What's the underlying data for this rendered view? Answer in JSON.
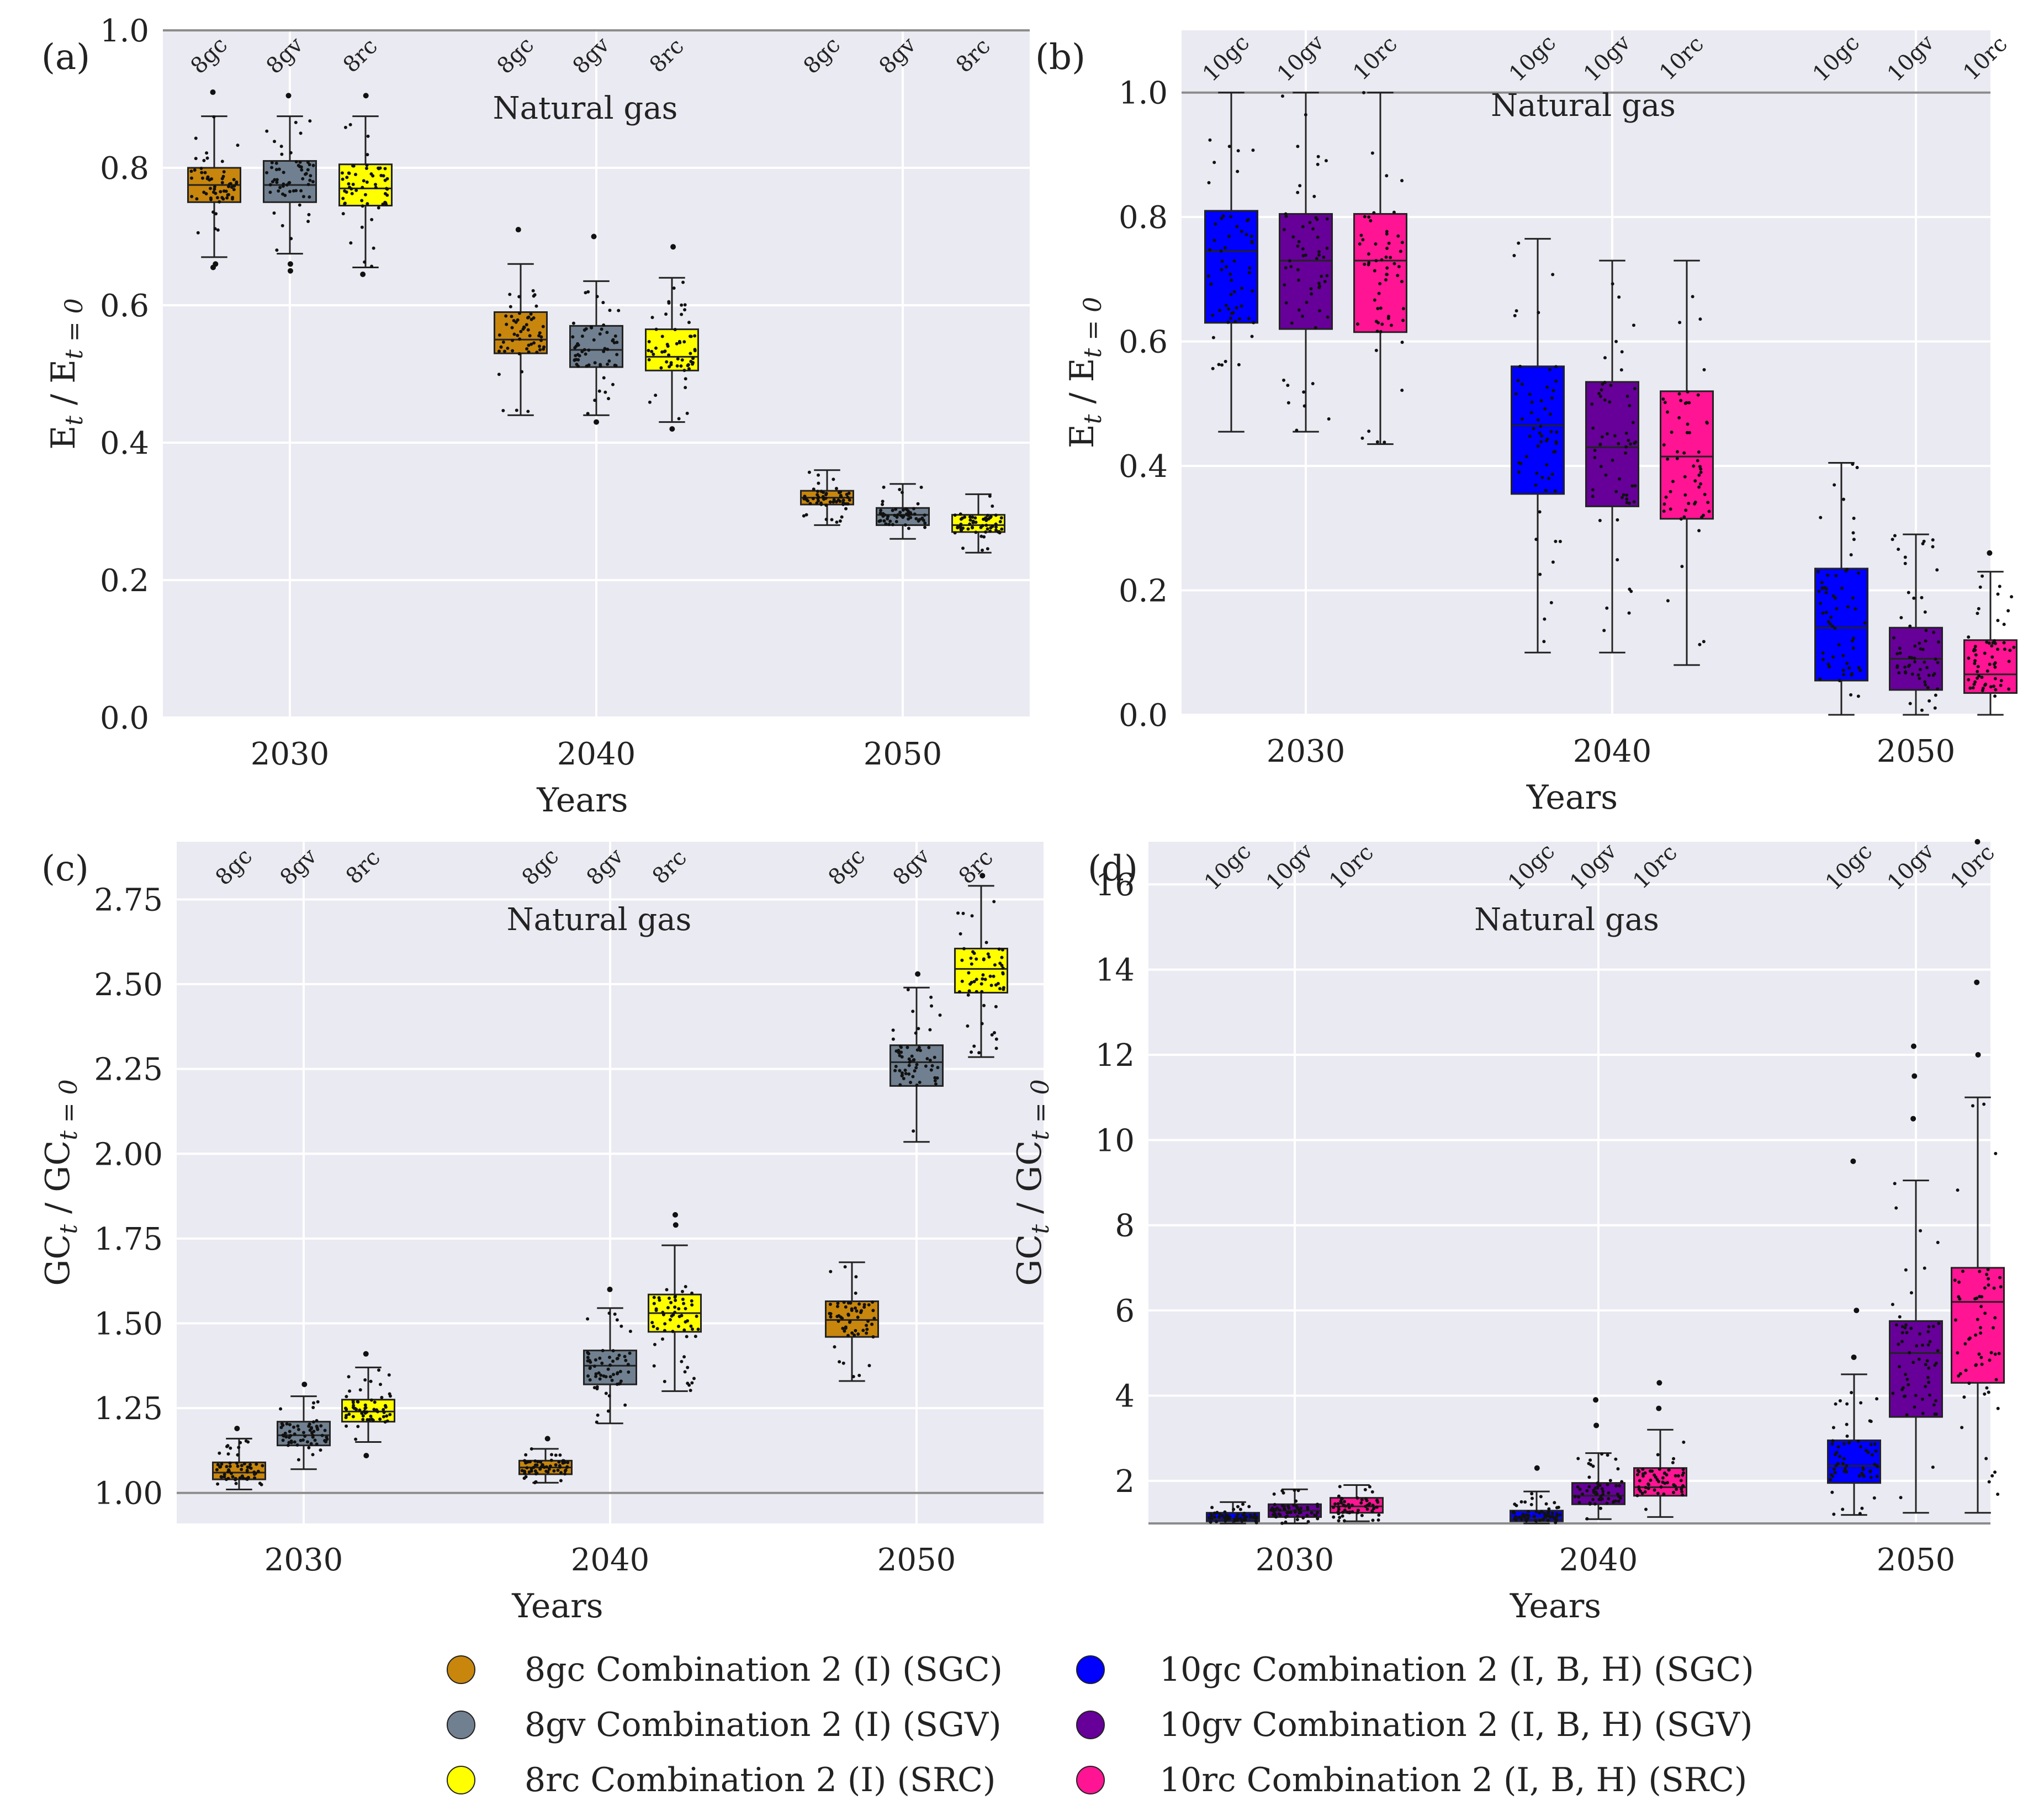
{
  "chart_data": [
    {
      "id": "a",
      "panel_label": "(a)",
      "type": "box",
      "annotation": "Natural gas",
      "xlabel": "Years",
      "ylabel_main": "E",
      "ylabel_sub": "t",
      "ylabel_sep": " / ",
      "ylabel_main2": "E",
      "ylabel_sub2": "t = 0",
      "categories": [
        "2030",
        "2040",
        "2050"
      ],
      "ylim": [
        0,
        1.0
      ],
      "yticks": [
        0.0,
        0.2,
        0.4,
        0.6,
        0.8,
        1.0
      ],
      "ytick_labels": [
        "0.0",
        "0.2",
        "0.4",
        "0.6",
        "0.8",
        "1.0"
      ],
      "reference_line": 1.0,
      "series": [
        {
          "name": "8gc",
          "color": "#c8860d",
          "boxes": [
            {
              "whislo": 0.67,
              "q1": 0.75,
              "med": 0.775,
              "q3": 0.8,
              "whishi": 0.875,
              "fliers": [
                0.91,
                0.66,
                0.655
              ]
            },
            {
              "whislo": 0.44,
              "q1": 0.53,
              "med": 0.55,
              "q3": 0.59,
              "whishi": 0.66,
              "fliers": [
                0.71
              ]
            },
            {
              "whislo": 0.28,
              "q1": 0.31,
              "med": 0.32,
              "q3": 0.33,
              "whishi": 0.36,
              "fliers": []
            }
          ]
        },
        {
          "name": "8gv",
          "color": "#708090",
          "boxes": [
            {
              "whislo": 0.675,
              "q1": 0.75,
              "med": 0.775,
              "q3": 0.81,
              "whishi": 0.875,
              "fliers": [
                0.905,
                0.66,
                0.65
              ]
            },
            {
              "whislo": 0.44,
              "q1": 0.51,
              "med": 0.535,
              "q3": 0.57,
              "whishi": 0.635,
              "fliers": [
                0.7,
                0.43
              ]
            },
            {
              "whislo": 0.26,
              "q1": 0.28,
              "med": 0.295,
              "q3": 0.305,
              "whishi": 0.34,
              "fliers": []
            }
          ]
        },
        {
          "name": "8rc",
          "color": "#ffff00",
          "boxes": [
            {
              "whislo": 0.655,
              "q1": 0.745,
              "med": 0.77,
              "q3": 0.805,
              "whishi": 0.875,
              "fliers": [
                0.905,
                0.645
              ]
            },
            {
              "whislo": 0.43,
              "q1": 0.505,
              "med": 0.525,
              "q3": 0.565,
              "whishi": 0.64,
              "fliers": [
                0.685,
                0.42
              ]
            },
            {
              "whislo": 0.24,
              "q1": 0.27,
              "med": 0.28,
              "q3": 0.295,
              "whishi": 0.325,
              "fliers": []
            }
          ]
        }
      ]
    },
    {
      "id": "b",
      "panel_label": "(b)",
      "type": "box",
      "annotation": "Natural gas",
      "xlabel": "Years",
      "ylabel_main": "E",
      "ylabel_sub": "t",
      "ylabel_sep": " / ",
      "ylabel_main2": "E",
      "ylabel_sub2": "t = 0",
      "categories": [
        "2030",
        "2040",
        "2050"
      ],
      "ylim": [
        0,
        1.1
      ],
      "yticks": [
        0.0,
        0.2,
        0.4,
        0.6,
        0.8,
        1.0
      ],
      "ytick_labels": [
        "0.0",
        "0.2",
        "0.4",
        "0.6",
        "0.8",
        "1.0"
      ],
      "reference_line": 1.0,
      "series": [
        {
          "name": "10gc",
          "color": "#0000ff",
          "boxes": [
            {
              "whislo": 0.455,
              "q1": 0.63,
              "med": 0.745,
              "q3": 0.81,
              "whishi": 1.0,
              "fliers": []
            },
            {
              "whislo": 0.1,
              "q1": 0.355,
              "med": 0.465,
              "q3": 0.56,
              "whishi": 0.765,
              "fliers": []
            },
            {
              "whislo": 0.0,
              "q1": 0.055,
              "med": 0.14,
              "q3": 0.235,
              "whishi": 0.405,
              "fliers": []
            }
          ]
        },
        {
          "name": "10gv",
          "color": "#660099",
          "boxes": [
            {
              "whislo": 0.455,
              "q1": 0.62,
              "med": 0.73,
              "q3": 0.805,
              "whishi": 1.0,
              "fliers": []
            },
            {
              "whislo": 0.1,
              "q1": 0.335,
              "med": 0.43,
              "q3": 0.535,
              "whishi": 0.73,
              "fliers": []
            },
            {
              "whislo": 0.0,
              "q1": 0.04,
              "med": 0.09,
              "q3": 0.14,
              "whishi": 0.29,
              "fliers": []
            }
          ]
        },
        {
          "name": "10rc",
          "color": "#ff1493",
          "boxes": [
            {
              "whislo": 0.435,
              "q1": 0.615,
              "med": 0.73,
              "q3": 0.805,
              "whishi": 1.0,
              "fliers": []
            },
            {
              "whislo": 0.08,
              "q1": 0.315,
              "med": 0.415,
              "q3": 0.52,
              "whishi": 0.73,
              "fliers": []
            },
            {
              "whislo": 0.0,
              "q1": 0.035,
              "med": 0.065,
              "q3": 0.12,
              "whishi": 0.23,
              "fliers": [
                0.26
              ]
            }
          ]
        }
      ]
    },
    {
      "id": "c",
      "panel_label": "(c)",
      "type": "box",
      "annotation": "Natural gas",
      "xlabel": "Years",
      "ylabel_main": "GC",
      "ylabel_sub": "t",
      "ylabel_sep": " / ",
      "ylabel_main2": "GC",
      "ylabel_sub2": "t = 0",
      "categories": [
        "2030",
        "2040",
        "2050"
      ],
      "ylim": [
        0.91,
        2.92
      ],
      "yticks": [
        1.0,
        1.25,
        1.5,
        1.75,
        2.0,
        2.25,
        2.5,
        2.75
      ],
      "ytick_labels": [
        "1.00",
        "1.25",
        "1.50",
        "1.75",
        "2.00",
        "2.25",
        "2.50",
        "2.75"
      ],
      "reference_line": 1.0,
      "series": [
        {
          "name": "8gc",
          "color": "#c8860d",
          "boxes": [
            {
              "whislo": 1.01,
              "q1": 1.04,
              "med": 1.06,
              "q3": 1.09,
              "whishi": 1.16,
              "fliers": [
                1.19
              ]
            },
            {
              "whislo": 1.03,
              "q1": 1.055,
              "med": 1.075,
              "q3": 1.095,
              "whishi": 1.13,
              "fliers": [
                1.16
              ]
            },
            {
              "whislo": 1.33,
              "q1": 1.46,
              "med": 1.51,
              "q3": 1.565,
              "whishi": 1.68,
              "fliers": []
            }
          ]
        },
        {
          "name": "8gv",
          "color": "#708090",
          "boxes": [
            {
              "whislo": 1.07,
              "q1": 1.14,
              "med": 1.17,
              "q3": 1.21,
              "whishi": 1.285,
              "fliers": [
                1.32
              ]
            },
            {
              "whislo": 1.205,
              "q1": 1.32,
              "med": 1.375,
              "q3": 1.42,
              "whishi": 1.545,
              "fliers": [
                1.6
              ]
            },
            {
              "whislo": 2.035,
              "q1": 2.2,
              "med": 2.27,
              "q3": 2.32,
              "whishi": 2.49,
              "fliers": [
                2.53
              ]
            }
          ]
        },
        {
          "name": "8rc",
          "color": "#ffff00",
          "boxes": [
            {
              "whislo": 1.15,
              "q1": 1.21,
              "med": 1.24,
              "q3": 1.275,
              "whishi": 1.37,
              "fliers": [
                1.41,
                1.11
              ]
            },
            {
              "whislo": 1.3,
              "q1": 1.475,
              "med": 1.53,
              "q3": 1.585,
              "whishi": 1.73,
              "fliers": [
                1.79,
                1.82
              ]
            },
            {
              "whislo": 2.285,
              "q1": 2.475,
              "med": 2.545,
              "q3": 2.605,
              "whishi": 2.79,
              "fliers": [
                2.82
              ]
            }
          ]
        }
      ]
    },
    {
      "id": "d",
      "panel_label": "(d)",
      "type": "box",
      "annotation": "Natural gas",
      "xlabel": "Years",
      "ylabel_main": "GC",
      "ylabel_sub": "t",
      "ylabel_sep": " / ",
      "ylabel_main2": "GC",
      "ylabel_sub2": "t = 0",
      "categories": [
        "2030",
        "2040",
        "2050"
      ],
      "ylim": [
        1.0,
        17.0
      ],
      "yticks": [
        2,
        4,
        6,
        8,
        10,
        12,
        14,
        16
      ],
      "ytick_labels": [
        "2",
        "4",
        "6",
        "8",
        "10",
        "12",
        "14",
        "16"
      ],
      "reference_line": 1.0,
      "series": [
        {
          "name": "10gc",
          "color": "#0000ff",
          "boxes": [
            {
              "whislo": 1.0,
              "q1": 1.05,
              "med": 1.1,
              "q3": 1.25,
              "whishi": 1.5,
              "fliers": []
            },
            {
              "whislo": 1.0,
              "q1": 1.05,
              "med": 1.12,
              "q3": 1.3,
              "whishi": 1.75,
              "fliers": [
                2.3
              ]
            },
            {
              "whislo": 1.2,
              "q1": 1.95,
              "med": 2.35,
              "q3": 2.95,
              "whishi": 4.5,
              "fliers": [
                4.9,
                6.0,
                9.5
              ]
            }
          ]
        },
        {
          "name": "10gv",
          "color": "#660099",
          "boxes": [
            {
              "whislo": 1.0,
              "q1": 1.15,
              "med": 1.3,
              "q3": 1.45,
              "whishi": 1.8,
              "fliers": []
            },
            {
              "whislo": 1.1,
              "q1": 1.45,
              "med": 1.65,
              "q3": 1.95,
              "whishi": 2.65,
              "fliers": [
                3.3,
                3.9
              ]
            },
            {
              "whislo": 1.25,
              "q1": 3.5,
              "med": 5.0,
              "q3": 5.75,
              "whishi": 9.05,
              "fliers": [
                10.5,
                11.5,
                12.2
              ]
            }
          ]
        },
        {
          "name": "10rc",
          "color": "#ff1493",
          "boxes": [
            {
              "whislo": 1.05,
              "q1": 1.25,
              "med": 1.4,
              "q3": 1.6,
              "whishi": 1.9,
              "fliers": []
            },
            {
              "whislo": 1.15,
              "q1": 1.65,
              "med": 1.85,
              "q3": 2.3,
              "whishi": 3.2,
              "fliers": [
                3.7,
                4.3
              ]
            },
            {
              "whislo": 1.25,
              "q1": 4.3,
              "med": 6.2,
              "q3": 7.0,
              "whishi": 11.0,
              "fliers": [
                12.0,
                13.7,
                17.0
              ]
            }
          ]
        }
      ]
    }
  ],
  "legend": [
    {
      "label": "8gc Combination 2 (I) (SGC)",
      "color": "#c8860d"
    },
    {
      "label": "8gv Combination 2 (I) (SGV)",
      "color": "#708090"
    },
    {
      "label": "8rc Combination 2 (I) (SRC)",
      "color": "#ffff00"
    },
    {
      "label": "10gc Combination 2 (I, B, H) (SGC)",
      "color": "#0000ff"
    },
    {
      "label": "10gv Combination 2 (I, B, H) (SGV)",
      "color": "#660099"
    },
    {
      "label": "10rc Combination 2 (I, B, H) (SRC)",
      "color": "#ff1493"
    }
  ]
}
